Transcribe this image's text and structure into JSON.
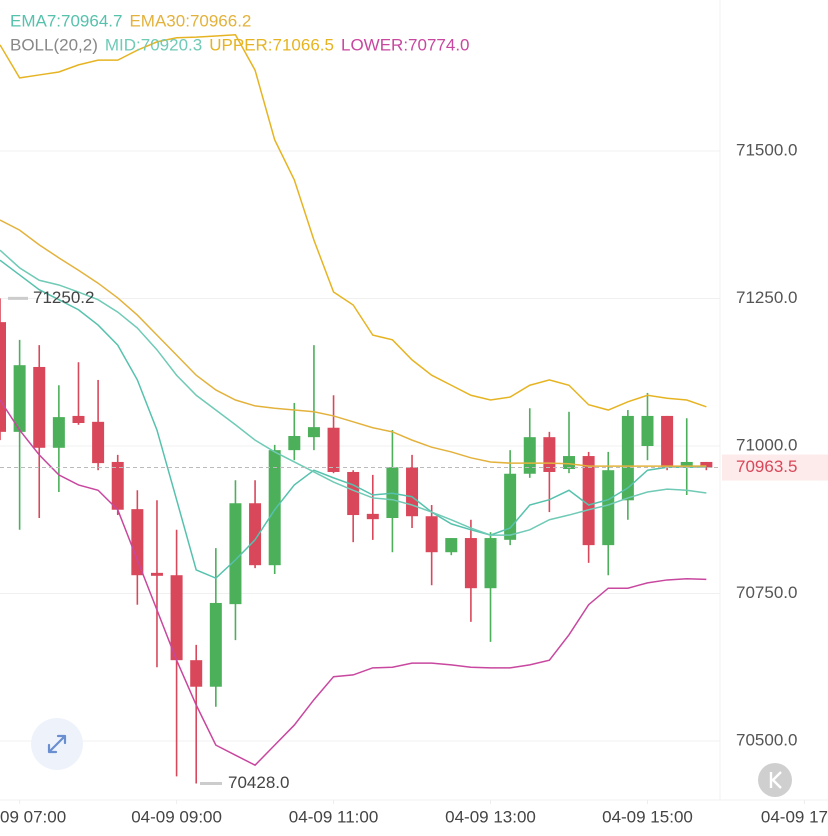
{
  "chart_data": {
    "type": "candlestick",
    "boll_label": "BOLL(20,2)",
    "x": [
      6.75,
      7,
      7.25,
      7.5,
      7.75,
      8,
      8.25,
      8.5,
      8.75,
      9,
      9.25,
      9.5,
      9.75,
      10,
      10.25,
      10.5,
      10.75,
      11,
      11.25,
      11.5,
      11.75,
      12,
      12.25,
      12.5,
      12.75,
      13,
      13.25,
      13.5,
      13.75,
      14,
      14.25,
      14.5,
      14.75,
      15,
      15.25,
      15.5,
      15.75
    ],
    "open": [
      71210,
      71024,
      71134,
      70997,
      71051,
      71041,
      70973,
      70893,
      70785,
      70781,
      70637,
      70592,
      70732,
      70903,
      70798,
      70993,
      71015,
      71031,
      70956,
      70885,
      70878,
      70964,
      70881,
      70820,
      70844,
      70759,
      70841,
      70953,
      71015,
      70961,
      70983,
      70832,
      70908,
      71000,
      71051,
      70963,
      70973
    ],
    "high": [
      71250.2,
      71180,
      71171,
      71103,
      71142,
      71112,
      70985,
      70925,
      70908,
      70858,
      70663,
      70827,
      70942,
      70942,
      71002,
      71073,
      71171,
      71086,
      70959,
      70951,
      71027,
      70985,
      70900,
      70844,
      70875,
      70854,
      70993,
      71064,
      71024,
      71058,
      70990,
      70990,
      71061,
      71090,
      71051,
      71047,
      70973
    ],
    "low": [
      71010,
      70858,
      70878,
      70922,
      71036,
      70959,
      70883,
      70731,
      70625,
      70440,
      70428,
      70558,
      70671,
      70793,
      70783,
      70976,
      70993,
      70954,
      70837,
      70841,
      70820,
      70861,
      70764,
      70815,
      70702,
      70668,
      70832,
      70946,
      70888,
      70954,
      70802,
      70781,
      70875,
      70976,
      70959,
      70917,
      70959
    ],
    "close": [
      71024,
      71137,
      70997,
      71049,
      71039,
      70971,
      70892,
      70781,
      70780,
      70637,
      70592,
      70734,
      70903,
      70798,
      70993,
      71017,
      71032,
      70956,
      70883,
      70876,
      70964,
      70881,
      70820,
      70844,
      70759,
      70844,
      70953,
      71015,
      70956,
      70983,
      70832,
      70959,
      71051,
      71051,
      70963,
      70973,
      70963.5
    ],
    "up_color": "#4caf5a",
    "down_color": "#d9475a",
    "series": [
      {
        "name": "EMA7:70964.7",
        "color": "#56c2ad",
        "values": [
          71315,
          71290,
          71265,
          71248,
          71231,
          71205,
          71171,
          71112,
          71027,
          70909,
          70790,
          70776,
          70807,
          70841,
          70892,
          70934,
          70959,
          70946,
          70934,
          70917,
          70920,
          70914,
          70888,
          70868,
          70858,
          70849,
          70861,
          70900,
          70909,
          70925,
          70900,
          70909,
          70929,
          70959,
          70964,
          70964,
          70964.7
        ]
      },
      {
        "name": "EMA30:70966.2",
        "color": "#e3b23c",
        "values": [
          71383,
          71366,
          71341,
          71319,
          71298,
          71276,
          71251,
          71222,
          71188,
          71154,
          71120,
          71095,
          71078,
          71068,
          71064,
          71061,
          71058,
          71051,
          71041,
          71031,
          71024,
          71010,
          70998,
          70990,
          70980,
          70973,
          70971,
          70971,
          70971,
          70970,
          70966,
          70966,
          70966,
          70966,
          70966,
          70966,
          70966.2
        ]
      },
      {
        "name": "MID:70920.3",
        "color": "#6fcab6",
        "values": [
          71332,
          71302,
          71281,
          71273,
          71261,
          71248,
          71227,
          71200,
          71163,
          71120,
          71086,
          71061,
          71036,
          71010,
          70990,
          70973,
          70956,
          70939,
          70925,
          70912,
          70909,
          70900,
          70888,
          70875,
          70861,
          70849,
          70849,
          70858,
          70875,
          70883,
          70892,
          70900,
          70912,
          70922,
          70927,
          70925,
          70920.3
        ]
      },
      {
        "name": "UPPER:71066.5",
        "color": "#e6b422",
        "values": [
          71680,
          71624,
          71629,
          71634,
          71646,
          71654,
          71654,
          71671,
          71685,
          71692,
          71693,
          71695,
          71697,
          71637,
          71519,
          71451,
          71349,
          71261,
          71239,
          71188,
          71180,
          71146,
          71120,
          71103,
          71086,
          71078,
          71083,
          71103,
          71112,
          71103,
          71070,
          71061,
          71075,
          71086,
          71081,
          71078,
          71066.5
        ]
      },
      {
        "name": "LOWER:70774.0",
        "color": "#c8479f",
        "values": [
          71078,
          71027,
          70985,
          70951,
          70934,
          70925,
          70892,
          70807,
          70722,
          70637,
          70561,
          70493,
          70476,
          70459,
          70493,
          70527,
          70570,
          70609,
          70612,
          70624,
          70625,
          70632,
          70632,
          70629,
          70625,
          70624,
          70624,
          70629,
          70637,
          70680,
          70731,
          70759,
          70759,
          70768,
          70773,
          70775,
          70774.0
        ]
      }
    ],
    "max_label": 71250.2,
    "min_label": {
      "value": 70428,
      "label": "70428.0"
    },
    "last_price": 70963.5,
    "ylim": [
      70400,
      71756
    ],
    "yticks": [
      {
        "value": 70500,
        "label": "70500.0"
      },
      {
        "value": 70750,
        "label": "70750.0"
      },
      {
        "value": 71000,
        "label": "71000.0"
      },
      {
        "value": 71250,
        "label": "71250.0"
      },
      {
        "value": 71500,
        "label": "71500.0"
      }
    ],
    "xlim": [
      6.75,
      17.3
    ],
    "xticks": [
      {
        "value": 7,
        "label": "09 07:00"
      },
      {
        "value": 9,
        "label": "04-09 09:00"
      },
      {
        "value": 11,
        "label": "04-09 11:00"
      },
      {
        "value": 13,
        "label": "04-09 13:00"
      },
      {
        "value": 15,
        "label": "04-09 15:00"
      },
      {
        "value": 17,
        "label": "04-09 17"
      }
    ],
    "grid": true
  }
}
